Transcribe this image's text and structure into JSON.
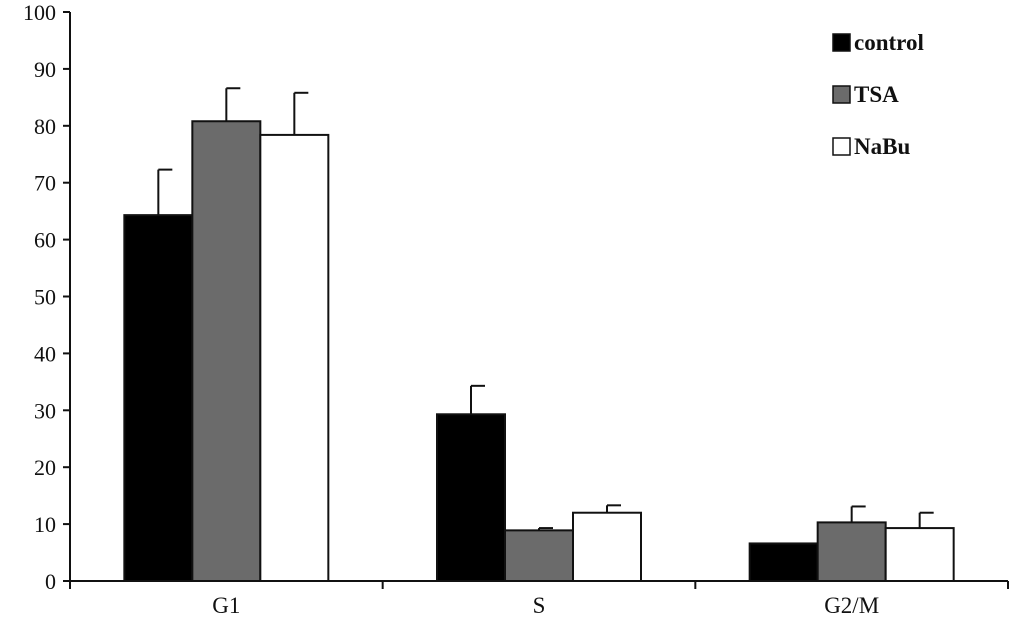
{
  "chart_data": {
    "type": "bar",
    "title": "",
    "xlabel": "",
    "ylabel": "",
    "ylim": [
      0,
      100
    ],
    "yticks": [
      0,
      10,
      20,
      30,
      40,
      50,
      60,
      70,
      80,
      90,
      100
    ],
    "grid": false,
    "legend_position": "top-right",
    "categories": [
      "G1",
      "S",
      "G2/M"
    ],
    "series": [
      {
        "name": "control",
        "color": "#000000",
        "values": [
          64.3,
          29.3,
          6.6
        ],
        "errors": [
          8.0,
          5.0,
          0.0
        ]
      },
      {
        "name": "TSA",
        "color": "#6b6b6b",
        "values": [
          80.8,
          8.9,
          10.3
        ],
        "errors": [
          5.8,
          0.4,
          2.8
        ]
      },
      {
        "name": "NaBu",
        "color": "#ffffff",
        "values": [
          78.4,
          12.0,
          9.3
        ],
        "errors": [
          7.4,
          1.3,
          2.7
        ]
      }
    ]
  }
}
